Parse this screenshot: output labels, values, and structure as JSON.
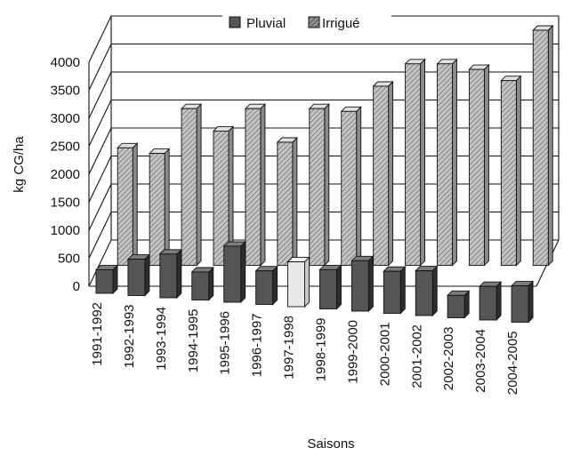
{
  "chart_data": {
    "type": "bar",
    "variant": "3d-clustered",
    "title": "",
    "xlabel": "Saisons",
    "ylabel": "kg CG/ha",
    "ylim": [
      0,
      4000
    ],
    "yticks": [
      0,
      500,
      1000,
      1500,
      2000,
      2500,
      3000,
      3500,
      4000
    ],
    "grid": true,
    "legend_position": "top-right",
    "categories": [
      "1991-1992",
      "1992-1993",
      "1993-1994",
      "1994-1995",
      "1995-1996",
      "1996-1997",
      "1997-1998",
      "1998-1999",
      "1999-2000",
      "2000-2001",
      "2001-2002",
      "2002-2003",
      "2003-2004",
      "2004-2005"
    ],
    "series": [
      {
        "name": "Pluvial",
        "color": "#555555",
        "pattern": "solid-dark",
        "values": [
          420,
          650,
          780,
          500,
          1000,
          600,
          800,
          700,
          900,
          750,
          800,
          400,
          600,
          650
        ],
        "highlight_index": 6,
        "highlight_color": "#e8e8e8"
      },
      {
        "name": "Irrigué",
        "color": "#b5b5b5",
        "pattern": "hatched",
        "values": [
          2100,
          2000,
          2800,
          2400,
          2800,
          2200,
          2800,
          2750,
          3200,
          3600,
          3600,
          3500,
          3300,
          4200
        ]
      }
    ]
  }
}
